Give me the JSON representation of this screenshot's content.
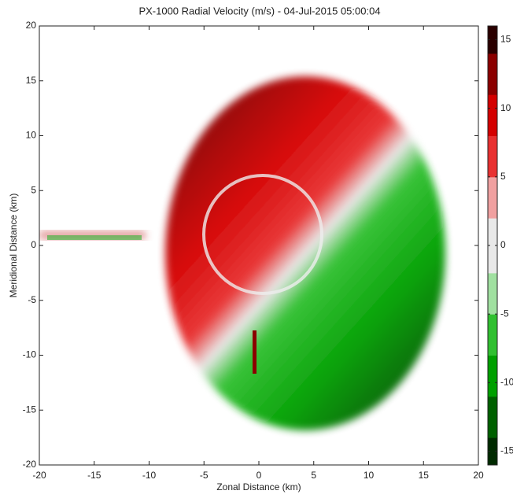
{
  "chart_data": {
    "type": "heatmap",
    "title": "PX-1000 Radial Velocity (m/s) - 04-Jul-2015 05:00:04",
    "x_label": "Zonal Distance (km)",
    "y_label": "Meridional Distance (km)",
    "xlim": [
      -20,
      20
    ],
    "xticks": [
      -20,
      -15,
      -10,
      -5,
      0,
      5,
      10,
      15,
      20
    ],
    "ylim": [
      -20,
      20
    ],
    "yticks": [
      -20,
      -15,
      -10,
      -5,
      0,
      5,
      10,
      15,
      20
    ],
    "clim": [
      -16,
      16
    ],
    "cticks": [
      -15,
      -10,
      -5,
      0,
      5,
      10,
      15
    ],
    "colormap": [
      "#002a00",
      "#006000",
      "#00a000",
      "#30c030",
      "#a0e0a0",
      "#e8e8e8",
      "#f0a0a0",
      "#e83030",
      "#d40000",
      "#8b0000",
      "#2a0000"
    ]
  }
}
